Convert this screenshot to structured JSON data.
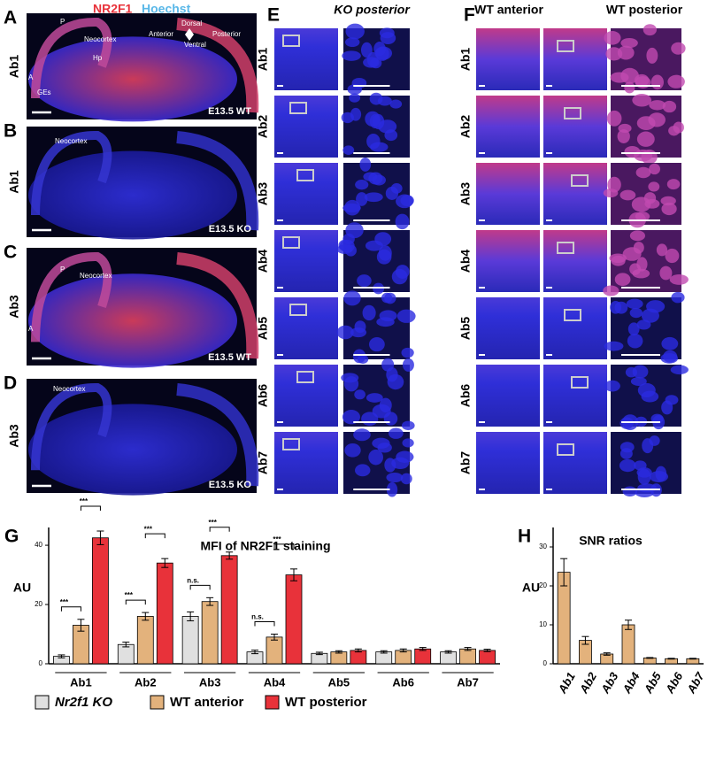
{
  "figure": {
    "header": {
      "marker": "NR2F1",
      "stain": "Hoechst"
    },
    "panels": [
      {
        "letter": "A",
        "antibody": "Ab1",
        "stage": "E13.5 WT",
        "labels": [
          "Neocortex",
          "Hp",
          "GEs",
          "P",
          "A"
        ],
        "orientation": [
          "Dorsal",
          "Anterior",
          "Ventral",
          "Posterior"
        ]
      },
      {
        "letter": "B",
        "antibody": "Ab1",
        "stage": "E13.5 KO",
        "labels": [
          "Neocortex"
        ]
      },
      {
        "letter": "C",
        "antibody": "Ab3",
        "stage": "E13.5 WT",
        "labels": [
          "Neocortex",
          "P",
          "A"
        ]
      },
      {
        "letter": "D",
        "antibody": "Ab3",
        "stage": "E13.5 KO",
        "labels": [
          "Neocortex"
        ]
      }
    ],
    "ko": {
      "letter": "E",
      "title": "KO posterior"
    },
    "wt": {
      "letter": "F",
      "titles": [
        "WT anterior",
        "WT posterior"
      ]
    },
    "rows": [
      "Ab1",
      "Ab2",
      "Ab3",
      "Ab4",
      "Ab5",
      "Ab6",
      "Ab7"
    ]
  },
  "chart_data": [
    {
      "type": "bar",
      "panel_label": "G",
      "title": "MFI of NR2F1 staining",
      "y_label": "AU",
      "categories": [
        "Ab1",
        "Ab2",
        "Ab3",
        "Ab4",
        "Ab5",
        "Ab6",
        "Ab7"
      ],
      "series": [
        {
          "name": "Nr2f1 KO",
          "color": "#e0e0e0",
          "values": [
            2.5,
            6.5,
            16,
            4,
            3.5,
            4,
            4
          ],
          "errors": [
            0.5,
            0.8,
            1.5,
            0.6,
            0.4,
            0.4,
            0.4
          ]
        },
        {
          "name": "WT anterior",
          "color": "#e3b27c",
          "values": [
            13,
            16,
            21,
            9,
            4,
            4.5,
            5
          ],
          "errors": [
            2,
            1.3,
            1.3,
            1,
            0.4,
            0.5,
            0.5
          ]
        },
        {
          "name": "WT posterior",
          "color": "#e8323a",
          "values": [
            42.5,
            34,
            36.5,
            30,
            4.5,
            5,
            4.5
          ],
          "errors": [
            2.3,
            1.5,
            1.2,
            2,
            0.5,
            0.5,
            0.4
          ]
        }
      ],
      "annotations": [
        "***",
        "***",
        "***",
        "***",
        "n.s.",
        "***",
        "n.s.",
        "***"
      ],
      "ylim": [
        0,
        46
      ],
      "yticks": [
        0,
        20,
        40
      ]
    },
    {
      "type": "bar",
      "panel_label": "H",
      "title": "SNR  ratios",
      "y_label": "AU",
      "categories": [
        "Ab1",
        "Ab2",
        "Ab3",
        "Ab4",
        "Ab5",
        "Ab6",
        "Ab7"
      ],
      "series": [
        {
          "name": "SNR",
          "color": "#e3b27c",
          "values": [
            23.5,
            6,
            2.5,
            10,
            1.5,
            1.3,
            1.3
          ],
          "errors": [
            3.5,
            1,
            0.3,
            1.2,
            0.1,
            0.1,
            0.1
          ]
        }
      ],
      "ylim": [
        0,
        35
      ],
      "yticks": [
        0,
        10,
        20,
        30
      ]
    }
  ]
}
